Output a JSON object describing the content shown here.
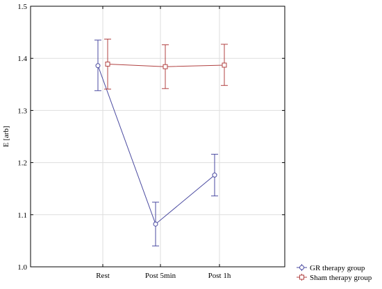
{
  "chart_data": {
    "type": "line",
    "title": "",
    "xlabel": "",
    "ylabel": "E [arb]",
    "categories": [
      "Rest",
      "Post 5min",
      "Post 1h"
    ],
    "ylim": [
      1.0,
      1.5
    ],
    "yticks": [
      "1.0",
      "1.1",
      "1.2",
      "1.3",
      "1.4",
      "1.5"
    ],
    "grid": true,
    "legend_position": "bottom-right, outside plot",
    "series": [
      {
        "name": "GR therapy group",
        "color": "#4a4aa0",
        "marker": "circle",
        "values": [
          1.386,
          1.082,
          1.176
        ],
        "err_low": [
          1.338,
          1.04,
          1.136
        ],
        "err_high": [
          1.435,
          1.124,
          1.216
        ]
      },
      {
        "name": "Sham therapy group",
        "color": "#b04040",
        "marker": "square",
        "values": [
          1.389,
          1.384,
          1.387
        ],
        "err_low": [
          1.341,
          1.342,
          1.348
        ],
        "err_high": [
          1.437,
          1.426,
          1.427
        ]
      }
    ]
  }
}
